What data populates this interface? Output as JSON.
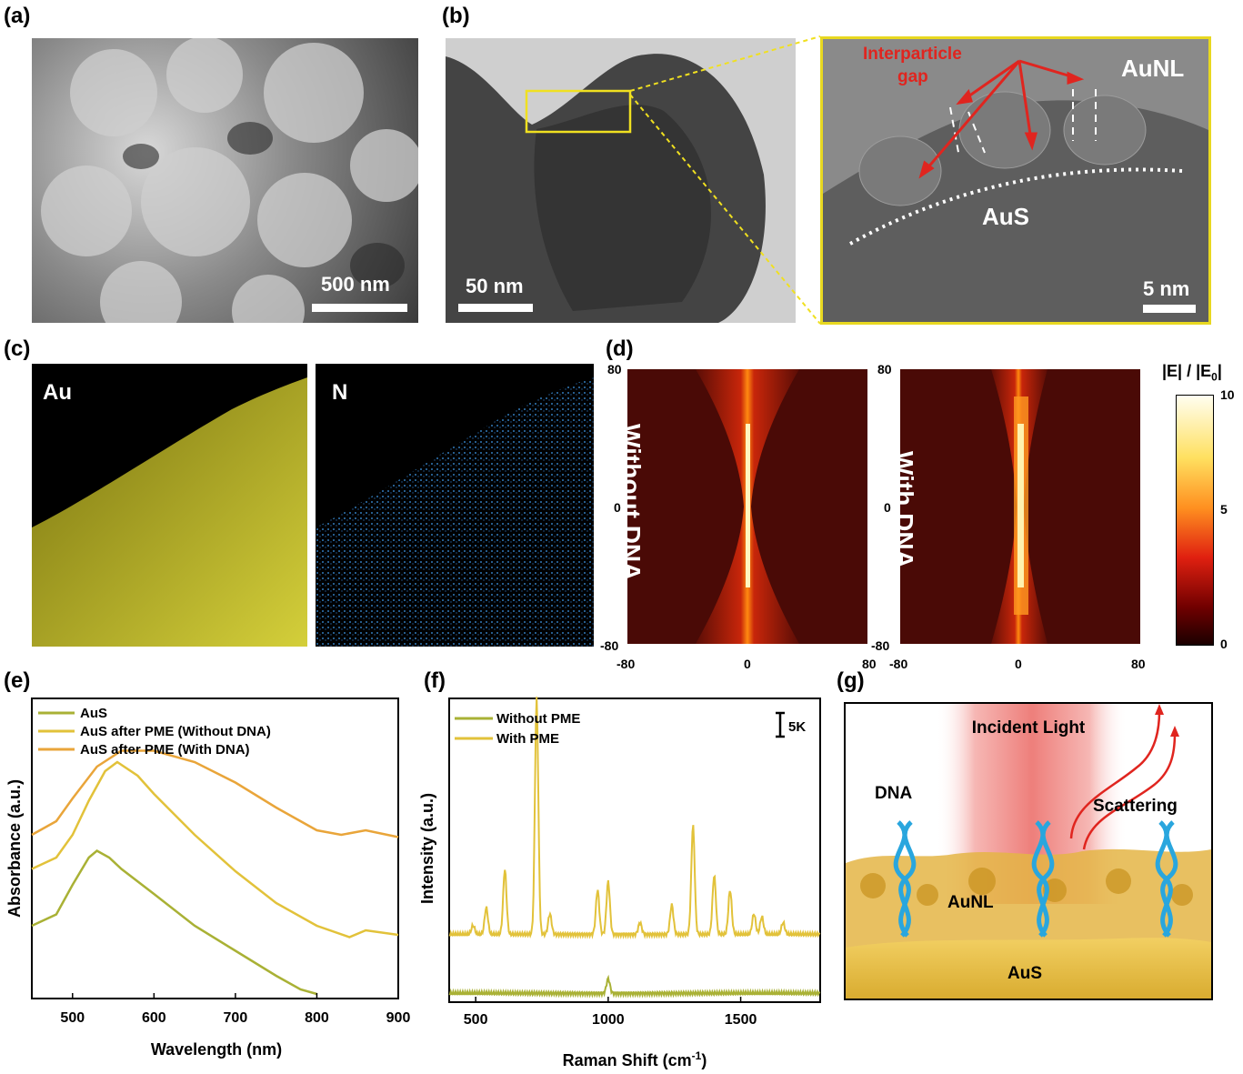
{
  "panels": {
    "a": {
      "label": "(a)",
      "scale": "500 nm"
    },
    "b": {
      "label": "(b)",
      "scale_left": "50 nm",
      "scale_right": "5 nm",
      "gap_label_1": "Interparticle",
      "gap_label_2": "gap",
      "aunl": "AuNL",
      "aus": "AuS"
    },
    "c": {
      "label": "(c)",
      "au": "Au",
      "n": "N"
    },
    "d": {
      "label": "(d)",
      "left_text": "Without DNA",
      "right_text": "With DNA",
      "colorbar_title": "|E| / |E0|",
      "colorbar_ticks": [
        "10",
        "5",
        "0"
      ],
      "y_ticks": [
        "80",
        "0",
        "-80"
      ],
      "x_ticks": [
        "-80",
        "0",
        "80"
      ]
    },
    "e": {
      "label": "(e)"
    },
    "f": {
      "label": "(f)",
      "scalebar": "5K"
    },
    "g": {
      "label": "(g)",
      "incident": "Incident Light",
      "dna": "DNA",
      "scattering": "Scattering",
      "aunl": "AuNL",
      "aus": "AuS"
    }
  },
  "colors": {
    "olive": "#a9b135",
    "yellow": "#e2c23a",
    "orange": "#e9a53a",
    "red": "#e0251f",
    "gold": "#e8c04a"
  },
  "chart_data": [
    {
      "panel": "e",
      "type": "line",
      "xlabel": "Wavelength (nm)",
      "ylabel": "Absorbance (a.u.)",
      "xlim": [
        450,
        900
      ],
      "x_ticks": [
        500,
        600,
        700,
        800,
        900
      ],
      "series": [
        {
          "name": "AuS",
          "color": "#a9b135",
          "x": [
            450,
            480,
            500,
            520,
            530,
            545,
            560,
            600,
            650,
            700,
            750,
            780,
            800
          ],
          "y": [
            0.0,
            0.05,
            0.18,
            0.3,
            0.33,
            0.3,
            0.25,
            0.14,
            0.0,
            -0.11,
            -0.22,
            -0.28,
            -0.3
          ]
        },
        {
          "name": "AuS after PME (Without DNA)",
          "color": "#e2c23a",
          "x": [
            450,
            480,
            500,
            520,
            540,
            555,
            580,
            600,
            650,
            700,
            750,
            800,
            840,
            860,
            900
          ],
          "y": [
            0.25,
            0.3,
            0.4,
            0.55,
            0.68,
            0.72,
            0.66,
            0.58,
            0.4,
            0.24,
            0.1,
            0.0,
            -0.05,
            -0.02,
            -0.04
          ]
        },
        {
          "name": "AuS after PME (With DNA)",
          "color": "#e9a53a",
          "x": [
            450,
            480,
            500,
            530,
            560,
            600,
            650,
            700,
            750,
            800,
            830,
            860,
            900
          ],
          "y": [
            0.4,
            0.46,
            0.56,
            0.7,
            0.77,
            0.77,
            0.72,
            0.63,
            0.52,
            0.42,
            0.4,
            0.42,
            0.39
          ]
        }
      ]
    },
    {
      "panel": "f",
      "type": "line",
      "xlabel": "Raman Shift (cm-1)",
      "ylabel": "Intensity (a.u.)",
      "xlim": [
        400,
        1800
      ],
      "x_ticks": [
        500,
        1000,
        1500
      ],
      "series": [
        {
          "name": "Without PME",
          "color": "#a9b135",
          "baseline": 0,
          "peaks": [
            {
              "x": 1000,
              "h": 0.05
            }
          ]
        },
        {
          "name": "With PME",
          "color": "#e2c23a",
          "baseline": 0.2,
          "peaks": [
            {
              "x": 490,
              "h": 0.03
            },
            {
              "x": 540,
              "h": 0.09
            },
            {
              "x": 610,
              "h": 0.22
            },
            {
              "x": 730,
              "h": 0.8
            },
            {
              "x": 780,
              "h": 0.07
            },
            {
              "x": 960,
              "h": 0.15
            },
            {
              "x": 1000,
              "h": 0.18
            },
            {
              "x": 1120,
              "h": 0.04
            },
            {
              "x": 1240,
              "h": 0.1
            },
            {
              "x": 1320,
              "h": 0.37
            },
            {
              "x": 1400,
              "h": 0.2
            },
            {
              "x": 1460,
              "h": 0.15
            },
            {
              "x": 1550,
              "h": 0.07
            },
            {
              "x": 1580,
              "h": 0.06
            },
            {
              "x": 1660,
              "h": 0.04
            }
          ]
        }
      ]
    }
  ]
}
